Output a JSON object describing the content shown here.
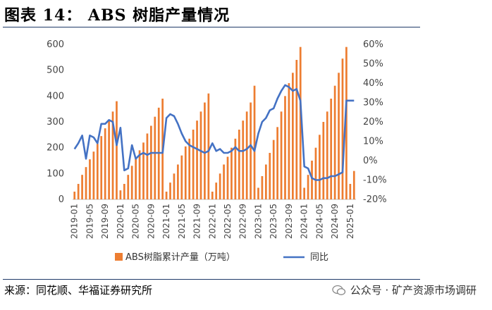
{
  "header": {
    "title": "图表 14：  ABS 树脂产量情况"
  },
  "footer": {
    "source": "来源：同花顺、华福证券研究所",
    "watermark": "公众号 · 矿产资源市场调研"
  },
  "colors": {
    "bar": "#ED7D31",
    "line": "#4472C4",
    "rule": "#1f3a68"
  },
  "chart_data": {
    "type": "bar",
    "combo": "bar+line (dual axis)",
    "grid": false,
    "legend_position": "bottom",
    "x": [
      "2019-01",
      "2019-02",
      "2019-03",
      "2019-04",
      "2019-05",
      "2019-06",
      "2019-07",
      "2019-08",
      "2019-09",
      "2019-10",
      "2019-11",
      "2019-12",
      "2020-01",
      "2020-02",
      "2020-03",
      "2020-04",
      "2020-05",
      "2020-06",
      "2020-07",
      "2020-08",
      "2020-09",
      "2020-10",
      "2020-11",
      "2020-12",
      "2021-01",
      "2021-02",
      "2021-03",
      "2021-04",
      "2021-05",
      "2021-06",
      "2021-07",
      "2021-08",
      "2021-09",
      "2021-10",
      "2021-11",
      "2021-12",
      "2022-01",
      "2022-02",
      "2022-03",
      "2022-04",
      "2022-05",
      "2022-06",
      "2022-07",
      "2022-08",
      "2022-09",
      "2022-10",
      "2022-11",
      "2022-12",
      "2023-01",
      "2023-02",
      "2023-03",
      "2023-04",
      "2023-05",
      "2023-06",
      "2023-07",
      "2023-08",
      "2023-09",
      "2023-10",
      "2023-11",
      "2023-12",
      "2024-01",
      "2024-02",
      "2024-03",
      "2024-04",
      "2024-05",
      "2024-06",
      "2024-07",
      "2024-08",
      "2024-09",
      "2024-10",
      "2024-11",
      "2024-12",
      "2025-01",
      "2025-02"
    ],
    "x_tick_labels": [
      "2019-01",
      "2019-05",
      "2019-09",
      "2020-01",
      "2020-05",
      "2020-09",
      "2021-01",
      "2021-05",
      "2021-09",
      "2022-01",
      "2022-05",
      "2022-09",
      "2023-01",
      "2023-05",
      "2023-09",
      "2024-01",
      "2024-05",
      "2024-09",
      "2025-01"
    ],
    "y_left": {
      "min": 0,
      "max": 600,
      "ticks": [
        "0",
        "100",
        "200",
        "300",
        "400",
        "500",
        "600"
      ]
    },
    "y_right": {
      "min": -20,
      "max": 60,
      "ticks": [
        "-20%",
        "-10%",
        "0%",
        "10%",
        "20%",
        "30%",
        "40%",
        "50%",
        "60%"
      ]
    },
    "series": [
      {
        "name": "ABS树脂累计产量（万吨）",
        "type": "bar",
        "axis": "left",
        "values": [
          30,
          60,
          95,
          125,
          155,
          185,
          215,
          245,
          275,
          305,
          340,
          380,
          35,
          60,
          95,
          130,
          160,
          190,
          220,
          255,
          285,
          320,
          355,
          390,
          30,
          65,
          100,
          135,
          170,
          205,
          235,
          270,
          305,
          340,
          375,
          410,
          30,
          65,
          100,
          135,
          165,
          200,
          235,
          270,
          305,
          340,
          375,
          440,
          45,
          90,
          135,
          180,
          230,
          280,
          340,
          400,
          450,
          490,
          540,
          590,
          45,
          95,
          150,
          200,
          250,
          300,
          340,
          390,
          440,
          490,
          545,
          590,
          60,
          110
        ]
      },
      {
        "name": "同比",
        "type": "line",
        "axis": "right",
        "values": [
          6,
          9,
          13,
          1,
          13,
          12,
          9,
          19,
          19,
          21,
          20,
          8,
          17,
          -5,
          -4,
          8,
          1,
          3,
          4,
          3,
          4,
          4,
          4,
          4,
          22,
          24,
          23,
          19,
          14,
          10,
          8,
          7,
          6,
          5,
          4,
          5,
          9,
          5,
          6,
          4,
          4,
          5,
          7,
          5,
          5,
          6,
          8,
          5,
          14,
          20,
          22,
          26,
          27,
          32,
          36,
          39,
          38,
          36,
          37,
          31,
          -3,
          -4,
          -9,
          -10,
          -10,
          -9,
          -9,
          -8,
          -8,
          -7,
          -6,
          31,
          31,
          31
        ]
      }
    ]
  }
}
